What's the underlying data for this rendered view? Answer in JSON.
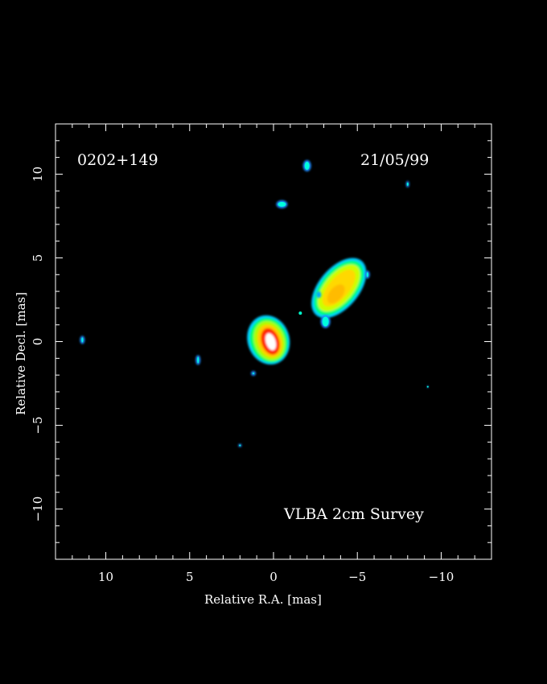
{
  "plot": {
    "source_name": "0202+149",
    "date": "21/05/99",
    "survey_label": "VLBA 2cm Survey",
    "xlabel": "Relative R.A. [mas]",
    "ylabel": "Relative Decl. [mas]",
    "xlim": [
      13,
      -13
    ],
    "ylim": [
      -13,
      13
    ],
    "x_tick_labels": [
      "10",
      "5",
      "0",
      "−5",
      "−10"
    ],
    "y_tick_labels": [
      "10",
      "5",
      "0",
      "−5",
      "−10"
    ]
  },
  "image_features": [
    {
      "name": "core",
      "ra": 0.3,
      "dec": 0.1,
      "colors": [
        "#00ddff",
        "#00ff88",
        "#ffee00",
        "#ff2200",
        "#ffffff"
      ]
    },
    {
      "name": "jet-component",
      "ra": -3.9,
      "dec": 3.2,
      "colors": [
        "#00ddff",
        "#00ff88",
        "#ffee00"
      ]
    },
    {
      "name": "blob",
      "ra": -2.0,
      "dec": 10.5
    },
    {
      "name": "blob",
      "ra": -0.5,
      "dec": 8.2
    },
    {
      "name": "blob",
      "ra": -5.6,
      "dec": 4.0
    },
    {
      "name": "blob",
      "ra": -3.1,
      "dec": 1.2
    },
    {
      "name": "blob",
      "ra": 11.4,
      "dec": 0.1
    },
    {
      "name": "blob",
      "ra": 4.5,
      "dec": -1.1
    },
    {
      "name": "blob",
      "ra": 1.2,
      "dec": -1.9
    },
    {
      "name": "blob",
      "ra": 2.0,
      "dec": -6.2
    },
    {
      "name": "blob",
      "ra": -8.0,
      "dec": 9.4
    },
    {
      "name": "blob",
      "ra": -9.2,
      "dec": -2.7
    }
  ]
}
